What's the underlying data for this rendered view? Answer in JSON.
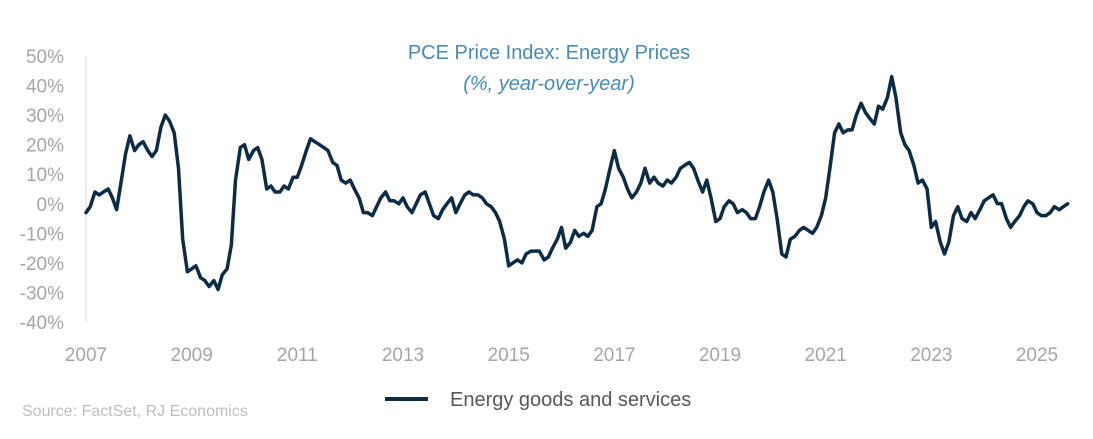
{
  "chart_data": {
    "type": "line",
    "title": "PCE Price Index: Energy Prices",
    "subtitle": "(%, year-over-year)",
    "source": "Source: FactSet, RJ Economics",
    "xlabel": "",
    "ylabel": "",
    "x_ticks": [
      "2007",
      "2009",
      "2011",
      "2013",
      "2015",
      "2017",
      "2019",
      "2021",
      "2023",
      "2025"
    ],
    "y_ticks": [
      "50%",
      "40%",
      "30%",
      "20%",
      "10%",
      "0%",
      "-10%",
      "-20%",
      "-30%",
      "-40%"
    ],
    "ylim": [
      -40,
      50
    ],
    "xlim": [
      2007.0,
      2025.9
    ],
    "grid": false,
    "legend_position": "bottom-center",
    "colors": {
      "line": "#0d2b45",
      "title": "#4a8ab8",
      "axis_text": "#a6a6a6",
      "legend_text": "#595959",
      "source_text": "#bfbfbf"
    },
    "series": [
      {
        "name": "Energy goods and services",
        "color": "#0d2b45",
        "points": [
          [
            2007.0,
            -3
          ],
          [
            2007.08,
            -1
          ],
          [
            2007.17,
            4
          ],
          [
            2007.25,
            3
          ],
          [
            2007.33,
            4
          ],
          [
            2007.42,
            5
          ],
          [
            2007.5,
            2
          ],
          [
            2007.58,
            -2
          ],
          [
            2007.67,
            8
          ],
          [
            2007.75,
            17
          ],
          [
            2007.83,
            23
          ],
          [
            2007.92,
            18
          ],
          [
            2008.0,
            20
          ],
          [
            2008.08,
            21
          ],
          [
            2008.17,
            18
          ],
          [
            2008.25,
            16
          ],
          [
            2008.33,
            18
          ],
          [
            2008.42,
            26
          ],
          [
            2008.5,
            30
          ],
          [
            2008.58,
            28
          ],
          [
            2008.67,
            24
          ],
          [
            2008.75,
            12
          ],
          [
            2008.83,
            -12
          ],
          [
            2008.92,
            -23
          ],
          [
            2009.0,
            -22
          ],
          [
            2009.08,
            -21
          ],
          [
            2009.17,
            -25
          ],
          [
            2009.25,
            -26
          ],
          [
            2009.33,
            -28
          ],
          [
            2009.42,
            -26
          ],
          [
            2009.5,
            -29
          ],
          [
            2009.58,
            -24
          ],
          [
            2009.67,
            -22
          ],
          [
            2009.75,
            -14
          ],
          [
            2009.83,
            8
          ],
          [
            2009.92,
            19
          ],
          [
            2010.0,
            20
          ],
          [
            2010.08,
            15
          ],
          [
            2010.17,
            18
          ],
          [
            2010.25,
            19
          ],
          [
            2010.33,
            15
          ],
          [
            2010.42,
            5
          ],
          [
            2010.5,
            6
          ],
          [
            2010.58,
            4
          ],
          [
            2010.67,
            4
          ],
          [
            2010.75,
            6
          ],
          [
            2010.83,
            5
          ],
          [
            2010.92,
            9
          ],
          [
            2011.0,
            9
          ],
          [
            2011.08,
            13
          ],
          [
            2011.17,
            18
          ],
          [
            2011.25,
            22
          ],
          [
            2011.33,
            21
          ],
          [
            2011.42,
            20
          ],
          [
            2011.5,
            19
          ],
          [
            2011.58,
            18
          ],
          [
            2011.67,
            14
          ],
          [
            2011.75,
            13
          ],
          [
            2011.83,
            8
          ],
          [
            2011.92,
            7
          ],
          [
            2012.0,
            8
          ],
          [
            2012.08,
            5
          ],
          [
            2012.17,
            2
          ],
          [
            2012.25,
            -3
          ],
          [
            2012.33,
            -3
          ],
          [
            2012.42,
            -4
          ],
          [
            2012.5,
            -1
          ],
          [
            2012.58,
            2
          ],
          [
            2012.67,
            4
          ],
          [
            2012.75,
            1
          ],
          [
            2012.83,
            1
          ],
          [
            2012.92,
            0
          ],
          [
            2013.0,
            2
          ],
          [
            2013.08,
            -1
          ],
          [
            2013.17,
            -3
          ],
          [
            2013.25,
            0
          ],
          [
            2013.33,
            3
          ],
          [
            2013.42,
            4
          ],
          [
            2013.5,
            0
          ],
          [
            2013.58,
            -4
          ],
          [
            2013.67,
            -5
          ],
          [
            2013.75,
            -2
          ],
          [
            2013.83,
            0
          ],
          [
            2013.92,
            2
          ],
          [
            2014.0,
            -3
          ],
          [
            2014.08,
            0
          ],
          [
            2014.17,
            3
          ],
          [
            2014.25,
            4
          ],
          [
            2014.33,
            3
          ],
          [
            2014.42,
            3
          ],
          [
            2014.5,
            2
          ],
          [
            2014.58,
            0
          ],
          [
            2014.67,
            -1
          ],
          [
            2014.75,
            -3
          ],
          [
            2014.83,
            -6
          ],
          [
            2014.92,
            -12
          ],
          [
            2015.0,
            -21
          ],
          [
            2015.08,
            -20
          ],
          [
            2015.17,
            -19
          ],
          [
            2015.25,
            -20
          ],
          [
            2015.33,
            -17
          ],
          [
            2015.42,
            -16
          ],
          [
            2015.5,
            -16
          ],
          [
            2015.58,
            -16
          ],
          [
            2015.67,
            -19
          ],
          [
            2015.75,
            -18
          ],
          [
            2015.83,
            -15
          ],
          [
            2015.92,
            -12
          ],
          [
            2016.0,
            -8
          ],
          [
            2016.08,
            -15
          ],
          [
            2016.17,
            -13
          ],
          [
            2016.25,
            -9
          ],
          [
            2016.33,
            -11
          ],
          [
            2016.42,
            -10
          ],
          [
            2016.5,
            -11
          ],
          [
            2016.58,
            -9
          ],
          [
            2016.67,
            -1
          ],
          [
            2016.75,
            0
          ],
          [
            2016.83,
            5
          ],
          [
            2016.92,
            12
          ],
          [
            2017.0,
            18
          ],
          [
            2017.08,
            12
          ],
          [
            2017.17,
            9
          ],
          [
            2017.25,
            5
          ],
          [
            2017.33,
            2
          ],
          [
            2017.42,
            4
          ],
          [
            2017.5,
            7
          ],
          [
            2017.58,
            12
          ],
          [
            2017.67,
            7
          ],
          [
            2017.75,
            9
          ],
          [
            2017.83,
            7
          ],
          [
            2017.92,
            6
          ],
          [
            2018.0,
            8
          ],
          [
            2018.08,
            7
          ],
          [
            2018.17,
            9
          ],
          [
            2018.25,
            12
          ],
          [
            2018.33,
            13
          ],
          [
            2018.42,
            14
          ],
          [
            2018.5,
            12
          ],
          [
            2018.58,
            8
          ],
          [
            2018.67,
            4
          ],
          [
            2018.75,
            8
          ],
          [
            2018.83,
            2
          ],
          [
            2018.92,
            -6
          ],
          [
            2019.0,
            -5
          ],
          [
            2019.08,
            -1
          ],
          [
            2019.17,
            1
          ],
          [
            2019.25,
            0
          ],
          [
            2019.33,
            -3
          ],
          [
            2019.42,
            -2
          ],
          [
            2019.5,
            -3
          ],
          [
            2019.58,
            -5
          ],
          [
            2019.67,
            -5
          ],
          [
            2019.75,
            -1
          ],
          [
            2019.83,
            4
          ],
          [
            2019.92,
            8
          ],
          [
            2020.0,
            4
          ],
          [
            2020.08,
            -5
          ],
          [
            2020.17,
            -17
          ],
          [
            2020.25,
            -18
          ],
          [
            2020.33,
            -12
          ],
          [
            2020.42,
            -11
          ],
          [
            2020.5,
            -9
          ],
          [
            2020.58,
            -8
          ],
          [
            2020.67,
            -9
          ],
          [
            2020.75,
            -10
          ],
          [
            2020.83,
            -8
          ],
          [
            2020.92,
            -4
          ],
          [
            2021.0,
            2
          ],
          [
            2021.08,
            12
          ],
          [
            2021.17,
            24
          ],
          [
            2021.25,
            27
          ],
          [
            2021.33,
            24
          ],
          [
            2021.42,
            25
          ],
          [
            2021.5,
            25
          ],
          [
            2021.58,
            30
          ],
          [
            2021.67,
            34
          ],
          [
            2021.75,
            31
          ],
          [
            2021.83,
            29
          ],
          [
            2021.92,
            27
          ],
          [
            2022.0,
            33
          ],
          [
            2022.08,
            32
          ],
          [
            2022.17,
            36
          ],
          [
            2022.25,
            43
          ],
          [
            2022.33,
            36
          ],
          [
            2022.42,
            24
          ],
          [
            2022.5,
            20
          ],
          [
            2022.58,
            18
          ],
          [
            2022.67,
            13
          ],
          [
            2022.75,
            7
          ],
          [
            2022.83,
            8
          ],
          [
            2022.92,
            5
          ],
          [
            2023.0,
            -8
          ],
          [
            2023.08,
            -6
          ],
          [
            2023.17,
            -13
          ],
          [
            2023.25,
            -17
          ],
          [
            2023.33,
            -13
          ],
          [
            2023.42,
            -4
          ],
          [
            2023.5,
            -1
          ],
          [
            2023.58,
            -5
          ],
          [
            2023.67,
            -6
          ],
          [
            2023.75,
            -3
          ],
          [
            2023.83,
            -5
          ],
          [
            2023.92,
            -2
          ],
          [
            2024.0,
            1
          ],
          [
            2024.08,
            2
          ],
          [
            2024.17,
            3
          ],
          [
            2024.25,
            0
          ],
          [
            2024.33,
            0
          ],
          [
            2024.42,
            -5
          ],
          [
            2024.5,
            -8
          ],
          [
            2024.58,
            -6
          ],
          [
            2024.67,
            -4
          ],
          [
            2024.75,
            -1
          ],
          [
            2024.83,
            1
          ],
          [
            2024.92,
            0
          ],
          [
            2025.0,
            -3
          ],
          [
            2025.08,
            -4
          ],
          [
            2025.17,
            -4
          ],
          [
            2025.25,
            -3
          ],
          [
            2025.33,
            -1
          ],
          [
            2025.42,
            -2
          ],
          [
            2025.5,
            -1
          ],
          [
            2025.58,
            0
          ]
        ]
      }
    ]
  }
}
